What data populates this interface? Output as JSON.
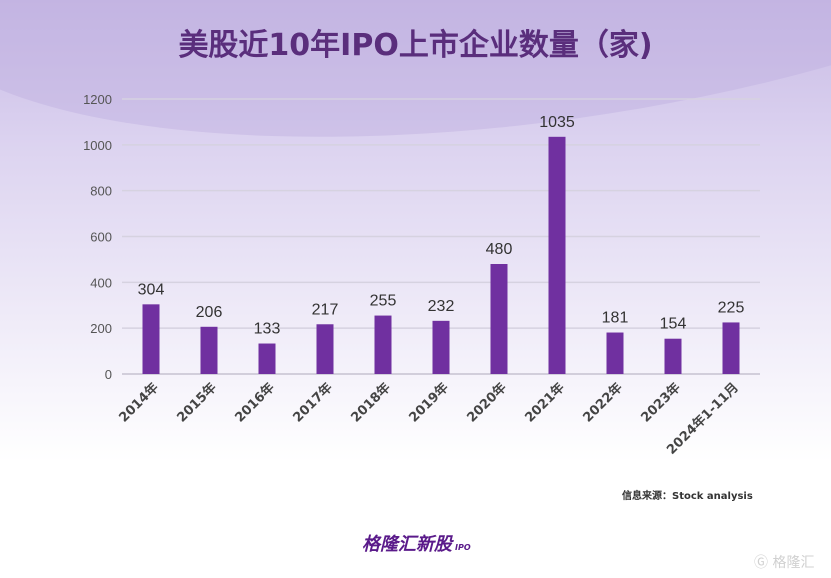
{
  "chart_data": {
    "type": "bar",
    "title": "美股近10年IPO上市企业数量（家)",
    "categories": [
      "2014年",
      "2015年",
      "2016年",
      "2017年",
      "2018年",
      "2019年",
      "2020年",
      "2021年",
      "2022年",
      "2023年",
      "2024年1-11月"
    ],
    "values": [
      304,
      206,
      133,
      217,
      255,
      232,
      480,
      1035,
      181,
      154,
      225
    ],
    "ylim": [
      0,
      1200
    ],
    "yticks": [
      0,
      200,
      400,
      600,
      800,
      1000,
      1200
    ],
    "grid": true,
    "bar_color": "#7030a0",
    "xlabel": "",
    "ylabel": ""
  },
  "source": "信息来源：Stock analysis",
  "watermark": "格隆汇新股",
  "brand": {
    "name": "格隆汇新股",
    "tag": "IPO"
  },
  "corner_logo": "格隆汇"
}
